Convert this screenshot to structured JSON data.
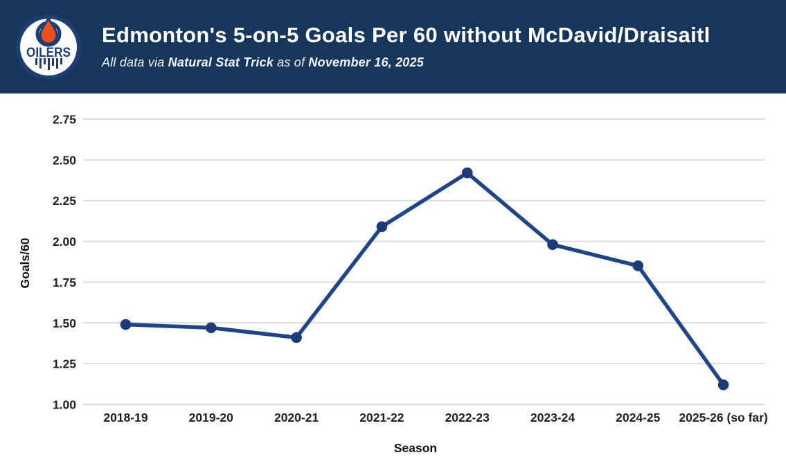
{
  "header": {
    "title": "Edmonton's 5-on-5 Goals Per 60 without McDavid/Draisaitl",
    "subtitle": {
      "prefix": "All data via ",
      "source": "Natural Stat Trick",
      "middle": " as of ",
      "date": "November 16, 2025"
    },
    "logo_text": "OILERS",
    "colors": {
      "background": "#16365C",
      "title_text": "#FFFFFF",
      "logo_navy": "#1D3E73",
      "logo_orange": "#E8501E"
    }
  },
  "chart_data": {
    "type": "line",
    "title": "Edmonton's 5-on-5 Goals Per 60 without McDavid/Draisaitl",
    "categories": [
      "2018-19",
      "2019-20",
      "2020-21",
      "2021-22",
      "2022-23",
      "2023-24",
      "2024-25",
      "2025-26 (so far)"
    ],
    "values": [
      1.49,
      1.47,
      1.41,
      2.09,
      2.42,
      1.98,
      1.85,
      1.12
    ],
    "xlabel": "Season",
    "ylabel": "Goals/60",
    "ylim": [
      1.0,
      2.75
    ],
    "yticks": [
      1.0,
      1.25,
      1.5,
      1.75,
      2.0,
      2.25,
      2.5,
      2.75
    ],
    "ytick_labels": [
      "1.00",
      "1.25",
      "1.50",
      "1.75",
      "2.00",
      "2.25",
      "2.50",
      "2.75"
    ],
    "grid": true,
    "legend": "none",
    "line_color": "#1F4589",
    "marker_color": "#1B3C7A",
    "gridline_color": "#DCDCDC",
    "tick_text_color": "#1F1F1F"
  }
}
